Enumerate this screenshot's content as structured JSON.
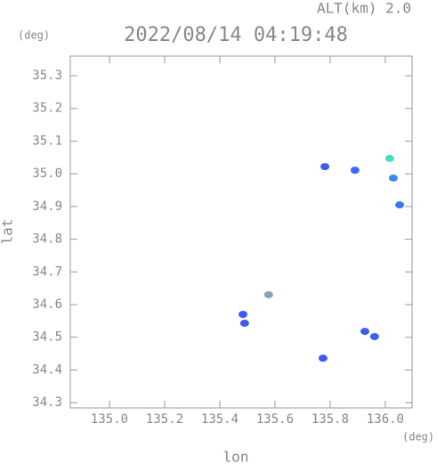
{
  "chart_data": {
    "type": "scatter",
    "title": "2022/08/14 04:19:48",
    "subtitle": "ALT(km) 2.0",
    "x_label": "lon",
    "y_label": "lat",
    "x_unit": "(deg)",
    "y_unit": "(deg)",
    "x": [
      135.781,
      135.89,
      136.016,
      136.029,
      136.052,
      135.484,
      135.49,
      135.926,
      135.961,
      135.774,
      135.577
    ],
    "y": [
      35.022,
      35.011,
      35.047,
      34.987,
      34.905,
      34.57,
      34.543,
      34.518,
      34.502,
      34.436,
      34.63
    ],
    "colors": [
      "#3a5cf0",
      "#3a6af0",
      "#40e0c8",
      "#3a8af0",
      "#3a78f0",
      "#3a5cf0",
      "#3a5cf0",
      "#3a5cf0",
      "#3a60f0",
      "#3a5cf0",
      "#8aa0c0"
    ],
    "xlim": [
      134.858,
      136.097
    ],
    "ylim": [
      34.284,
      35.36
    ],
    "xticks": [
      {
        "value": 135.0,
        "label": "135.0"
      },
      135.2,
      135.4,
      135.6,
      135.8,
      {
        "value": 136.0,
        "label": "136.0"
      }
    ],
    "yticks": [
      35.3,
      35.2,
      35.1,
      {
        "value": 35.0,
        "label": "35.0"
      },
      34.9,
      34.8,
      34.7,
      34.6,
      34.5,
      34.4,
      34.3
    ]
  }
}
